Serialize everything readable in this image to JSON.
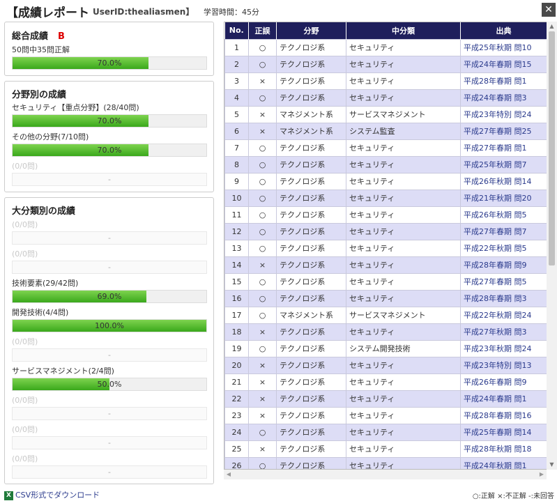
{
  "header": {
    "title": "【成績レポート",
    "user": "UserID:thealiasmen】",
    "study_time": "学習時間：45分",
    "close_label": "✕"
  },
  "overall": {
    "title": "総合成績",
    "grade": "B",
    "summary": "50問中35問正解",
    "bar": {
      "percent": 70.0,
      "label": "70.0%"
    }
  },
  "field": {
    "title": "分野別の成績",
    "items": [
      {
        "label": "セキュリティ【重点分野】(28/40問)",
        "percent": 70.0,
        "pct_label": "70.0%",
        "empty": false
      },
      {
        "label": "その他の分野(7/10問)",
        "percent": 70.0,
        "pct_label": "70.0%",
        "empty": false
      },
      {
        "label": "(0/0問)",
        "percent": 0,
        "pct_label": "-",
        "empty": true
      }
    ]
  },
  "major": {
    "title": "大分類別の成績",
    "items": [
      {
        "label": "(0/0問)",
        "percent": 0,
        "pct_label": "-",
        "empty": true
      },
      {
        "label": "(0/0問)",
        "percent": 0,
        "pct_label": "-",
        "empty": true
      },
      {
        "label": "技術要素(29/42問)",
        "percent": 69.0,
        "pct_label": "69.0%",
        "empty": false
      },
      {
        "label": "開発技術(4/4問)",
        "percent": 100.0,
        "pct_label": "100.0%",
        "empty": false
      },
      {
        "label": "(0/0問)",
        "percent": 0,
        "pct_label": "-",
        "empty": true
      },
      {
        "label": "サービスマネジメント(2/4問)",
        "percent": 50.0,
        "pct_label": "50.0%",
        "empty": false
      },
      {
        "label": "(0/0問)",
        "percent": 0,
        "pct_label": "-",
        "empty": true
      },
      {
        "label": "(0/0問)",
        "percent": 0,
        "pct_label": "-",
        "empty": true
      },
      {
        "label": "(0/0問)",
        "percent": 0,
        "pct_label": "-",
        "empty": true
      }
    ]
  },
  "results": {
    "columns": [
      "No.",
      "正誤",
      "分野",
      "中分類",
      "出典"
    ],
    "rows": [
      [
        "1",
        "○",
        "テクノロジ系",
        "セキュリティ",
        "平成25年秋期 問10"
      ],
      [
        "2",
        "○",
        "テクノロジ系",
        "セキュリティ",
        "平成24年春期 問15"
      ],
      [
        "3",
        "×",
        "テクノロジ系",
        "セキュリティ",
        "平成28年春期 問1"
      ],
      [
        "4",
        "○",
        "テクノロジ系",
        "セキュリティ",
        "平成24年春期 問3"
      ],
      [
        "5",
        "×",
        "マネジメント系",
        "サービスマネジメント",
        "平成23年特別 問24"
      ],
      [
        "6",
        "×",
        "マネジメント系",
        "システム監査",
        "平成27年春期 問25"
      ],
      [
        "7",
        "○",
        "テクノロジ系",
        "セキュリティ",
        "平成27年春期 問1"
      ],
      [
        "8",
        "○",
        "テクノロジ系",
        "セキュリティ",
        "平成25年秋期 問7"
      ],
      [
        "9",
        "○",
        "テクノロジ系",
        "セキュリティ",
        "平成26年秋期 問14"
      ],
      [
        "10",
        "○",
        "テクノロジ系",
        "セキュリティ",
        "平成21年秋期 問20"
      ],
      [
        "11",
        "○",
        "テクノロジ系",
        "セキュリティ",
        "平成26年秋期 問5"
      ],
      [
        "12",
        "○",
        "テクノロジ系",
        "セキュリティ",
        "平成27年春期 問7"
      ],
      [
        "13",
        "○",
        "テクノロジ系",
        "セキュリティ",
        "平成22年秋期 問5"
      ],
      [
        "14",
        "×",
        "テクノロジ系",
        "セキュリティ",
        "平成28年春期 問9"
      ],
      [
        "15",
        "○",
        "テクノロジ系",
        "セキュリティ",
        "平成27年春期 問5"
      ],
      [
        "16",
        "○",
        "テクノロジ系",
        "セキュリティ",
        "平成28年春期 問3"
      ],
      [
        "17",
        "○",
        "マネジメント系",
        "サービスマネジメント",
        "平成22年秋期 問24"
      ],
      [
        "18",
        "×",
        "テクノロジ系",
        "セキュリティ",
        "平成27年秋期 問3"
      ],
      [
        "19",
        "○",
        "テクノロジ系",
        "システム開発技術",
        "平成23年秋期 問24"
      ],
      [
        "20",
        "×",
        "テクノロジ系",
        "セキュリティ",
        "平成23年特別 問13"
      ],
      [
        "21",
        "×",
        "テクノロジ系",
        "セキュリティ",
        "平成26年春期 問9"
      ],
      [
        "22",
        "×",
        "テクノロジ系",
        "セキュリティ",
        "平成24年春期 問1"
      ],
      [
        "23",
        "×",
        "テクノロジ系",
        "セキュリティ",
        "平成28年春期 問16"
      ],
      [
        "24",
        "○",
        "テクノロジ系",
        "セキュリティ",
        "平成25年春期 問14"
      ],
      [
        "25",
        "×",
        "テクノロジ系",
        "セキュリティ",
        "平成28年秋期 問18"
      ],
      [
        "26",
        "○",
        "テクノロジ系",
        "セキュリティ",
        "平成24年秋期 問1"
      ]
    ]
  },
  "footer": {
    "csv_icon": "excel-icon",
    "csv_label": "CSV形式でダウンロード",
    "legend": "○:正解 ×:不正解 -:未回答"
  }
}
